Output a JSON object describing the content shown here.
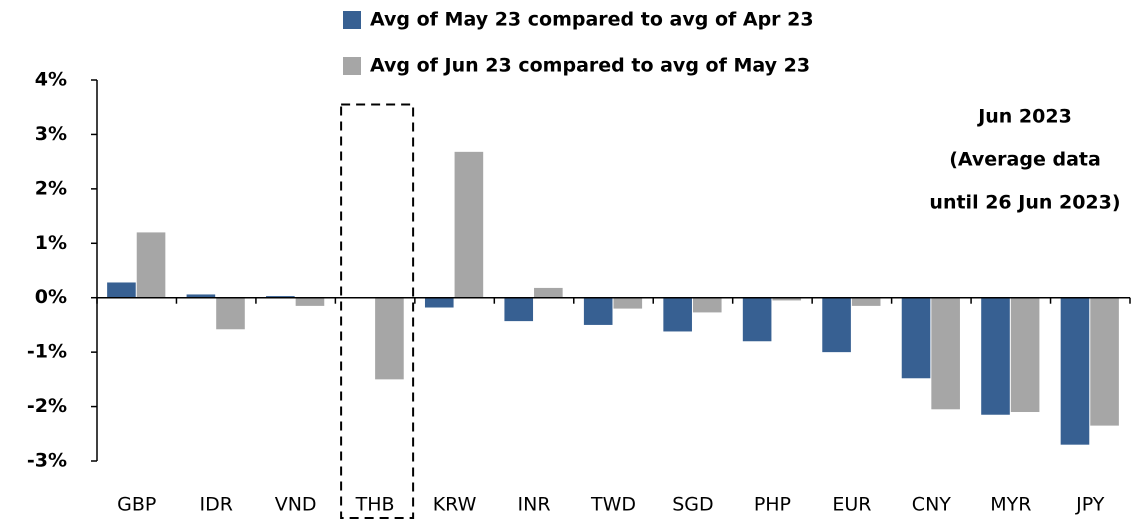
{
  "chart_data": {
    "type": "bar",
    "categories": [
      "GBP",
      "IDR",
      "VND",
      "THB",
      "KRW",
      "INR",
      "TWD",
      "SGD",
      "PHP",
      "EUR",
      "CNY",
      "MYR",
      "JPY"
    ],
    "series": [
      {
        "name": "Avg of May 23 compared to avg of Apr 23",
        "color": "#376092",
        "values": [
          0.28,
          0.06,
          0.03,
          null,
          -0.18,
          -0.43,
          -0.5,
          -0.62,
          -0.8,
          -1.0,
          -1.48,
          -2.15,
          -2.7
        ]
      },
      {
        "name": "Avg of Jun 23 compared to avg of May 23",
        "color": "#a6a6a6",
        "values": [
          1.2,
          -0.58,
          -0.15,
          -1.5,
          2.68,
          0.18,
          -0.2,
          -0.27,
          -0.05,
          -0.15,
          -2.05,
          -2.1,
          -2.35
        ]
      }
    ],
    "ylim": [
      -3,
      4
    ],
    "yticks": [
      {
        "value": -3,
        "label": "-3%"
      },
      {
        "value": -2,
        "label": "-2%"
      },
      {
        "value": -1,
        "label": "-1%"
      },
      {
        "value": 0,
        "label": "0%"
      },
      {
        "value": 1,
        "label": "1%"
      },
      {
        "value": 2,
        "label": "2%"
      },
      {
        "value": 3,
        "label": "3%"
      },
      {
        "value": 4,
        "label": "4%"
      }
    ],
    "annotation": [
      "Jun 2023",
      "(Average data",
      "until 26 Jun 2023)"
    ],
    "highlight": "THB",
    "grid": false
  }
}
